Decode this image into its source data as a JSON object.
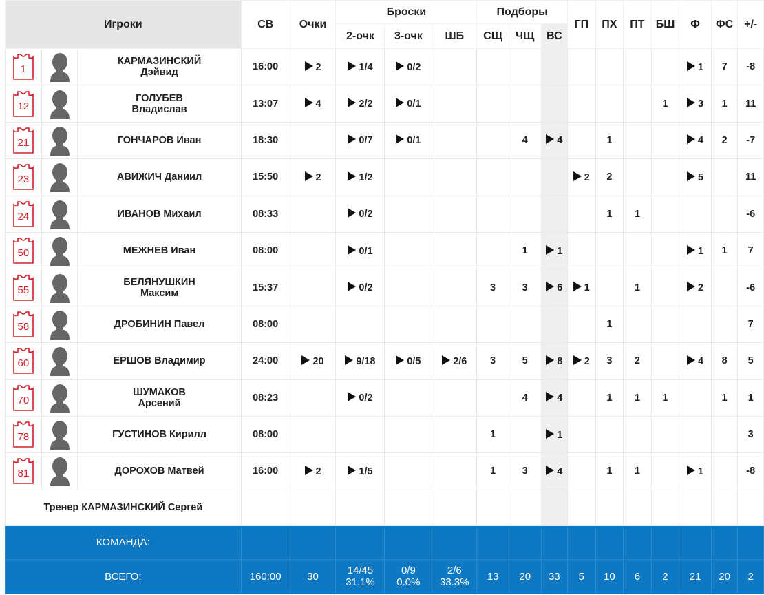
{
  "header": {
    "players": "Игроки",
    "minutes": "СВ",
    "points": "Очки",
    "shots": "Броски",
    "two": "2-очк",
    "three": "3-очк",
    "ft": "ШБ",
    "rebounds": "Подборы",
    "def": "СЩ",
    "off": "ЧЩ",
    "total": "ВС",
    "assists": "ГП",
    "steals": "ПХ",
    "turnovers": "ПТ",
    "blocks": "БШ",
    "fouls": "Ф",
    "fouled": "ФС",
    "pm": "+/-"
  },
  "players": [
    {
      "num": "1",
      "line1": "КАРМАЗИНСКИЙ",
      "line2": "Дэйвид",
      "min": "16:00",
      "pts": "2",
      "p2": "1/4",
      "p3": "0/2",
      "ft": "",
      "def": "",
      "off": "",
      "tot": "",
      "ast": "",
      "stl": "",
      "to": "",
      "blk": "",
      "f": "1",
      "fs": "7",
      "pm": "-8"
    },
    {
      "num": "12",
      "line1": "ГОЛУБЕВ",
      "line2": "Владислав",
      "min": "13:07",
      "pts": "4",
      "p2": "2/2",
      "p3": "0/1",
      "ft": "",
      "def": "",
      "off": "",
      "tot": "",
      "ast": "",
      "stl": "",
      "to": "",
      "blk": "1",
      "f": "3",
      "fs": "1",
      "pm": "11"
    },
    {
      "num": "21",
      "line1": "ГОНЧАРОВ Иван",
      "line2": "",
      "min": "18:30",
      "pts": "",
      "p2": "0/7",
      "p3": "0/1",
      "ft": "",
      "def": "",
      "off": "4",
      "tot": "4",
      "ast": "",
      "stl": "1",
      "to": "",
      "blk": "",
      "f": "4",
      "fs": "2",
      "pm": "-7"
    },
    {
      "num": "23",
      "line1": "АВИЖИЧ Даниил",
      "line2": "",
      "min": "15:50",
      "pts": "2",
      "p2": "1/2",
      "p3": "",
      "ft": "",
      "def": "",
      "off": "",
      "tot": "",
      "ast": "2",
      "stl": "2",
      "to": "",
      "blk": "",
      "f": "5",
      "fs": "",
      "pm": "11"
    },
    {
      "num": "24",
      "line1": "ИВАНОВ Михаил",
      "line2": "",
      "min": "08:33",
      "pts": "",
      "p2": "0/2",
      "p3": "",
      "ft": "",
      "def": "",
      "off": "",
      "tot": "",
      "ast": "",
      "stl": "1",
      "to": "1",
      "blk": "",
      "f": "",
      "fs": "",
      "pm": "-6"
    },
    {
      "num": "50",
      "line1": "МЕЖНЕВ Иван",
      "line2": "",
      "min": "08:00",
      "pts": "",
      "p2": "0/1",
      "p3": "",
      "ft": "",
      "def": "",
      "off": "1",
      "tot": "1",
      "ast": "",
      "stl": "",
      "to": "",
      "blk": "",
      "f": "1",
      "fs": "1",
      "pm": "7"
    },
    {
      "num": "55",
      "line1": "БЕЛЯНУШКИН",
      "line2": "Максим",
      "min": "15:37",
      "pts": "",
      "p2": "0/2",
      "p3": "",
      "ft": "",
      "def": "3",
      "off": "3",
      "tot": "6",
      "ast": "1",
      "stl": "",
      "to": "1",
      "blk": "",
      "f": "2",
      "fs": "",
      "pm": "-6"
    },
    {
      "num": "58",
      "line1": "ДРОБИНИН Павел",
      "line2": "",
      "min": "08:00",
      "pts": "",
      "p2": "",
      "p3": "",
      "ft": "",
      "def": "",
      "off": "",
      "tot": "",
      "ast": "",
      "stl": "1",
      "to": "",
      "blk": "",
      "f": "",
      "fs": "",
      "pm": "7"
    },
    {
      "num": "60",
      "line1": "ЕРШОВ Владимир",
      "line2": "",
      "min": "24:00",
      "pts": "20",
      "p2": "9/18",
      "p3": "0/5",
      "ft": "2/6",
      "def": "3",
      "off": "5",
      "tot": "8",
      "ast": "2",
      "stl": "3",
      "to": "2",
      "blk": "",
      "f": "4",
      "fs": "8",
      "pm": "5"
    },
    {
      "num": "70",
      "line1": "ШУМАКОВ",
      "line2": "Арсений",
      "min": "08:23",
      "pts": "",
      "p2": "0/2",
      "p3": "",
      "ft": "",
      "def": "",
      "off": "4",
      "tot": "4",
      "ast": "",
      "stl": "1",
      "to": "1",
      "blk": "1",
      "f": "",
      "fs": "1",
      "pm": "1"
    },
    {
      "num": "78",
      "line1": "ГУСТИНОВ Кирилл",
      "line2": "",
      "min": "08:00",
      "pts": "",
      "p2": "",
      "p3": "",
      "ft": "",
      "def": "1",
      "off": "",
      "tot": "1",
      "ast": "",
      "stl": "",
      "to": "",
      "blk": "",
      "f": "",
      "fs": "",
      "pm": "3"
    },
    {
      "num": "81",
      "line1": "ДОРОХОВ Матвей",
      "line2": "",
      "min": "16:00",
      "pts": "2",
      "p2": "1/5",
      "p3": "",
      "ft": "",
      "def": "1",
      "off": "3",
      "tot": "4",
      "ast": "",
      "stl": "1",
      "to": "1",
      "blk": "",
      "f": "1",
      "fs": "",
      "pm": "-8"
    }
  ],
  "coach": "Тренер КАРМАЗИНСКИЙ Сергей",
  "team_label": "КОМАНДА:",
  "totals": {
    "label": "ВСЕГО:",
    "min": "160:00",
    "pts": "30",
    "p2": "14/45",
    "p2pct": "31.1%",
    "p3": "0/9",
    "p3pct": "0.0%",
    "ft": "2/6",
    "ftpct": "33.3%",
    "def": "13",
    "off": "20",
    "tot": "33",
    "ast": "5",
    "stl": "10",
    "to": "6",
    "blk": "2",
    "f": "21",
    "fs": "20",
    "pm": "2"
  },
  "colors": {
    "jersey": "#d2232a",
    "summary_bg": "#0f78c3",
    "avatar": "#666666"
  },
  "icons": {
    "jersey": "jersey-icon",
    "avatar": "person-silhouette-icon",
    "play": "play-triangle-icon"
  }
}
